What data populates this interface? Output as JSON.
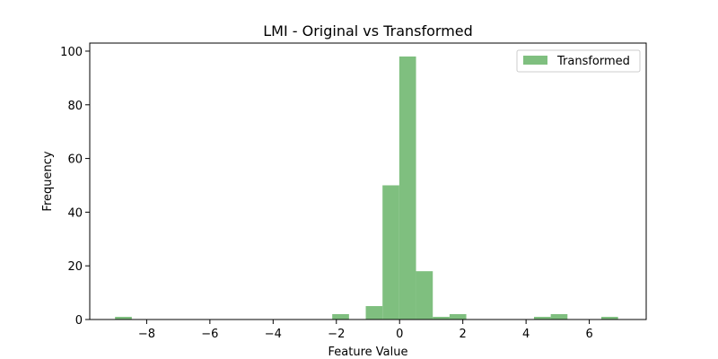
{
  "chart_data": {
    "type": "bar",
    "title": "LMI - Original vs Transformed",
    "xlabel": "Feature Value",
    "ylabel": "Frequency",
    "xlim": [
      -9.8,
      7.8
    ],
    "ylim": [
      0,
      103
    ],
    "xticks": [
      -8,
      -6,
      -4,
      -2,
      0,
      2,
      4,
      6
    ],
    "xtick_labels": [
      "−8",
      "−6",
      "−4",
      "−2",
      "0",
      "2",
      "4",
      "6"
    ],
    "yticks": [
      0,
      20,
      40,
      60,
      80,
      100
    ],
    "ytick_labels": [
      "0",
      "20",
      "40",
      "60",
      "80",
      "100"
    ],
    "legend_position": "top-right",
    "grid": false,
    "series": [
      {
        "name": "Transformed",
        "color": "#7fbf7f",
        "bins": [
          {
            "x0": -9.0,
            "x1": -8.47,
            "value": 1
          },
          {
            "x0": -2.13,
            "x1": -1.6,
            "value": 2
          },
          {
            "x0": -1.07,
            "x1": -0.54,
            "value": 5
          },
          {
            "x0": -0.54,
            "x1": -0.01,
            "value": 50
          },
          {
            "x0": -0.01,
            "x1": 0.52,
            "value": 98
          },
          {
            "x0": 0.52,
            "x1": 1.05,
            "value": 18
          },
          {
            "x0": 1.05,
            "x1": 1.58,
            "value": 1
          },
          {
            "x0": 1.58,
            "x1": 2.11,
            "value": 2
          },
          {
            "x0": 4.25,
            "x1": 4.78,
            "value": 1
          },
          {
            "x0": 4.78,
            "x1": 5.31,
            "value": 2
          },
          {
            "x0": 6.38,
            "x1": 6.91,
            "value": 1
          }
        ]
      }
    ]
  }
}
